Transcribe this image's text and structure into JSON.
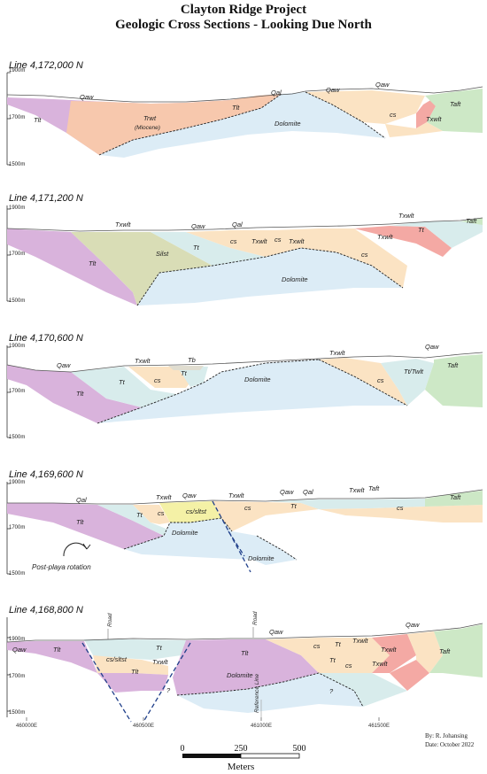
{
  "title_line1": "Clayton Ridge Project",
  "title_line2": "Geologic Cross Sections - Looking Due North",
  "colors": {
    "Tlt": "#d9b3dc",
    "Trwt": "#f7c8ad",
    "Dolomite": "#dcecf6",
    "cs": "#fbe3c3",
    "Txwlt": "#f4a9a4",
    "Taft": "#cde8c6",
    "Tt": "#d8ecec",
    "Silst": "#d9ddb6",
    "Tb": "#e0ddd0",
    "cs_sltst": "#f4f1a6"
  },
  "sections": [
    {
      "title": "Line 4,172,000 N",
      "elev_top": "1900m",
      "elev_mid": "1700m",
      "elev_bot": "1500m",
      "labels": [
        "Qaw",
        "Tlt",
        "Trwt",
        "(Miocene)",
        "Tlt",
        "Qal",
        "Dolomite",
        "Qaw",
        "Qaw",
        "cs",
        "Taft",
        "Txwlt"
      ]
    },
    {
      "title": "Line 4,171,200 N",
      "elev_top": "1900m",
      "elev_mid": "1700m",
      "elev_bot": "1500m",
      "labels": [
        "Txwlt",
        "Qaw",
        "Qal",
        "Txwlt",
        "Taft",
        "Tlt",
        "Silst",
        "Tt",
        "cs",
        "Txwlt",
        "cs",
        "Txwlt",
        "Tt",
        "Txwlt",
        "cs",
        "Dolomite"
      ]
    },
    {
      "title": "Line 4,170,600 N",
      "elev_top": "1900m",
      "elev_mid": "1700m",
      "elev_bot": "1500m",
      "labels": [
        "Qaw",
        "Txwlt",
        "Tb",
        "Txwlt",
        "Qaw",
        "Tlt",
        "Tt",
        "cs",
        "Tt",
        "Dolomite",
        "cs",
        "Tt/Twlt",
        "Taft"
      ]
    },
    {
      "title": "Line 4,169,600 N",
      "elev_top": "1900m",
      "elev_mid": "1700m",
      "elev_bot": "1500m",
      "labels": [
        "Qal",
        "Txwlt",
        "Qaw",
        "Txwlt",
        "Qaw",
        "Qal",
        "Txwlt",
        "Taft",
        "Taft",
        "Tlt",
        "Tt",
        "cs",
        "cs/sltst",
        "cs",
        "Tt",
        "cs",
        "Dolomite",
        "Dolomite"
      ],
      "note": "Post-playa rotation"
    },
    {
      "title": "Line 4,168,800 N",
      "elev_top": "1900m",
      "elev_mid": "1700m",
      "elev_bot": "1500m",
      "labels": [
        "Road",
        "Road",
        "Qaw",
        "Qaw",
        "Qaw",
        "Tlt",
        "Tt",
        "cs/sltst",
        "Txwlt",
        "Tlt",
        "Tlt",
        "cs",
        "Tt",
        "Txwlt",
        "Taft",
        "Txwlt",
        "cs",
        "Tt",
        "Txwlt",
        "Dolomite",
        "?",
        "?"
      ],
      "reference": "Reference Line",
      "eastings": [
        "460000E",
        "460500E",
        "461000E",
        "461500E"
      ]
    }
  ],
  "credit_by": "By: R. Johansing",
  "credit_date": "Date: October 2022",
  "scale": {
    "ticks": [
      "0",
      "250",
      "500"
    ],
    "unit": "Meters"
  }
}
